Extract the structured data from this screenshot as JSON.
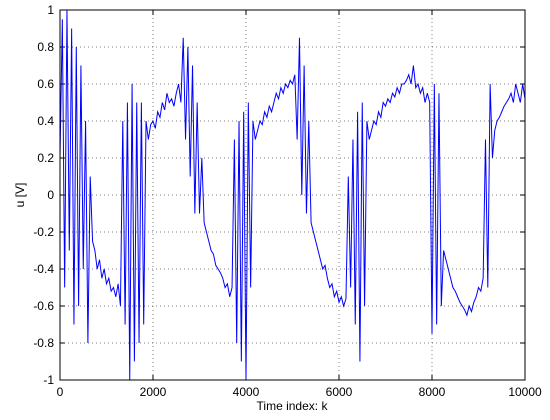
{
  "chart_data": {
    "type": "line",
    "xlabel": "Time index: k",
    "ylabel": "u [V]",
    "xlim": [
      0,
      10000
    ],
    "xticks": [
      0,
      2000,
      4000,
      6000,
      8000,
      10000
    ],
    "ylim": [
      -1,
      1
    ],
    "yticks": [
      -1,
      -0.8,
      -0.6,
      -0.4,
      -0.2,
      0,
      0.2,
      0.4,
      0.6,
      0.8,
      1
    ],
    "grid": true,
    "x": [
      0,
      50,
      100,
      150,
      200,
      250,
      300,
      350,
      400,
      450,
      500,
      550,
      600,
      650,
      700,
      750,
      800,
      850,
      900,
      950,
      1000,
      1050,
      1100,
      1150,
      1200,
      1250,
      1300,
      1350,
      1400,
      1450,
      1500,
      1550,
      1600,
      1650,
      1700,
      1750,
      1800,
      1850,
      1900,
      1950,
      2000,
      2050,
      2100,
      2150,
      2200,
      2250,
      2300,
      2350,
      2400,
      2450,
      2500,
      2550,
      2600,
      2650,
      2700,
      2750,
      2800,
      2850,
      2900,
      2950,
      3000,
      3050,
      3100,
      3150,
      3200,
      3250,
      3300,
      3350,
      3400,
      3450,
      3500,
      3550,
      3600,
      3650,
      3700,
      3750,
      3800,
      3850,
      3900,
      3950,
      4000,
      4050,
      4100,
      4150,
      4200,
      4250,
      4300,
      4350,
      4400,
      4450,
      4500,
      4550,
      4600,
      4650,
      4700,
      4750,
      4800,
      4850,
      4900,
      4950,
      5000,
      5050,
      5100,
      5150,
      5200,
      5250,
      5300,
      5350,
      5400,
      5450,
      5500,
      5550,
      5600,
      5650,
      5700,
      5750,
      5800,
      5850,
      5900,
      5950,
      6000,
      6050,
      6100,
      6150,
      6200,
      6250,
      6300,
      6350,
      6400,
      6450,
      6500,
      6550,
      6600,
      6650,
      6700,
      6750,
      6800,
      6850,
      6900,
      6950,
      7000,
      7050,
      7100,
      7150,
      7200,
      7250,
      7300,
      7350,
      7400,
      7450,
      7500,
      7550,
      7600,
      7650,
      7700,
      7750,
      7800,
      7850,
      7900,
      7950,
      8000,
      8050,
      8100,
      8150,
      8200,
      8250,
      8300,
      8350,
      8400,
      8450,
      8500,
      8550,
      8600,
      8650,
      8700,
      8750,
      8800,
      8850,
      8900,
      8950,
      9000,
      9050,
      9100,
      9150,
      9200,
      9250,
      9300,
      9350,
      9400,
      9450,
      9500,
      9550,
      9600,
      9650,
      9700,
      9750,
      9800,
      9850,
      9900,
      9950,
      10000
    ],
    "series": [
      {
        "color": "#0000ff",
        "values": [
          0.2,
          0.95,
          -0.5,
          1,
          -0.3,
          0.9,
          -0.7,
          0.8,
          -0.6,
          0.7,
          -0.4,
          0.4,
          -0.8,
          0.1,
          -0.25,
          -0.3,
          -0.4,
          -0.35,
          -0.45,
          -0.4,
          -0.48,
          -0.45,
          -0.52,
          -0.5,
          -0.55,
          -0.48,
          -0.6,
          0.4,
          -0.7,
          0.5,
          -1,
          0.6,
          -0.9,
          0.5,
          -0.8,
          0.5,
          -0.7,
          0.4,
          0.3,
          0.38,
          0.4,
          0.36,
          0.45,
          0.42,
          0.5,
          0.46,
          0.55,
          0.5,
          0.52,
          0.48,
          0.55,
          0.6,
          0.5,
          0.85,
          0.3,
          0.8,
          0.1,
          0.7,
          -0.1,
          0.5,
          -0.1,
          0.2,
          -0.15,
          -0.2,
          -0.25,
          -0.3,
          -0.32,
          -0.38,
          -0.4,
          -0.42,
          -0.45,
          -0.5,
          -0.48,
          -0.55,
          -0.5,
          0.3,
          -0.8,
          0.4,
          -0.9,
          0.45,
          -1,
          0.5,
          -0.5,
          0.4,
          0.3,
          0.35,
          0.4,
          0.38,
          0.45,
          0.42,
          0.48,
          0.45,
          0.5,
          0.55,
          0.52,
          0.58,
          0.55,
          0.6,
          0.58,
          0.62,
          0.6,
          0.65,
          0.3,
          0.85,
          0,
          0.7,
          -0.1,
          0.4,
          -0.15,
          -0.2,
          -0.25,
          -0.3,
          -0.35,
          -0.4,
          -0.38,
          -0.45,
          -0.5,
          -0.48,
          -0.55,
          -0.52,
          -0.58,
          -0.55,
          -0.6,
          -0.56,
          0.1,
          -0.5,
          0.3,
          -0.7,
          0.45,
          -0.9,
          0.5,
          -0.6,
          0.4,
          0.3,
          0.35,
          0.4,
          0.38,
          0.45,
          0.42,
          0.5,
          0.48,
          0.52,
          0.5,
          0.55,
          0.53,
          0.58,
          0.55,
          0.6,
          0.6,
          0.62,
          0.65,
          0.6,
          0.7,
          0.58,
          0.6,
          0.55,
          0.58,
          0.5,
          0.55,
          0.5,
          -0.75,
          0.6,
          -0.7,
          0.55,
          -0.6,
          -0.3,
          -0.35,
          -0.4,
          -0.45,
          -0.5,
          -0.52,
          -0.55,
          -0.58,
          -0.6,
          -0.62,
          -0.65,
          -0.6,
          -0.63,
          -0.58,
          -0.55,
          -0.5,
          -0.52,
          -0.45,
          0.3,
          -0.5,
          0.6,
          0.2,
          0.35,
          0.4,
          0.42,
          0.45,
          0.48,
          0.5,
          0.52,
          0.55,
          0.5,
          0.6,
          0.55,
          0.5,
          0.6,
          0.52
        ]
      }
    ]
  }
}
